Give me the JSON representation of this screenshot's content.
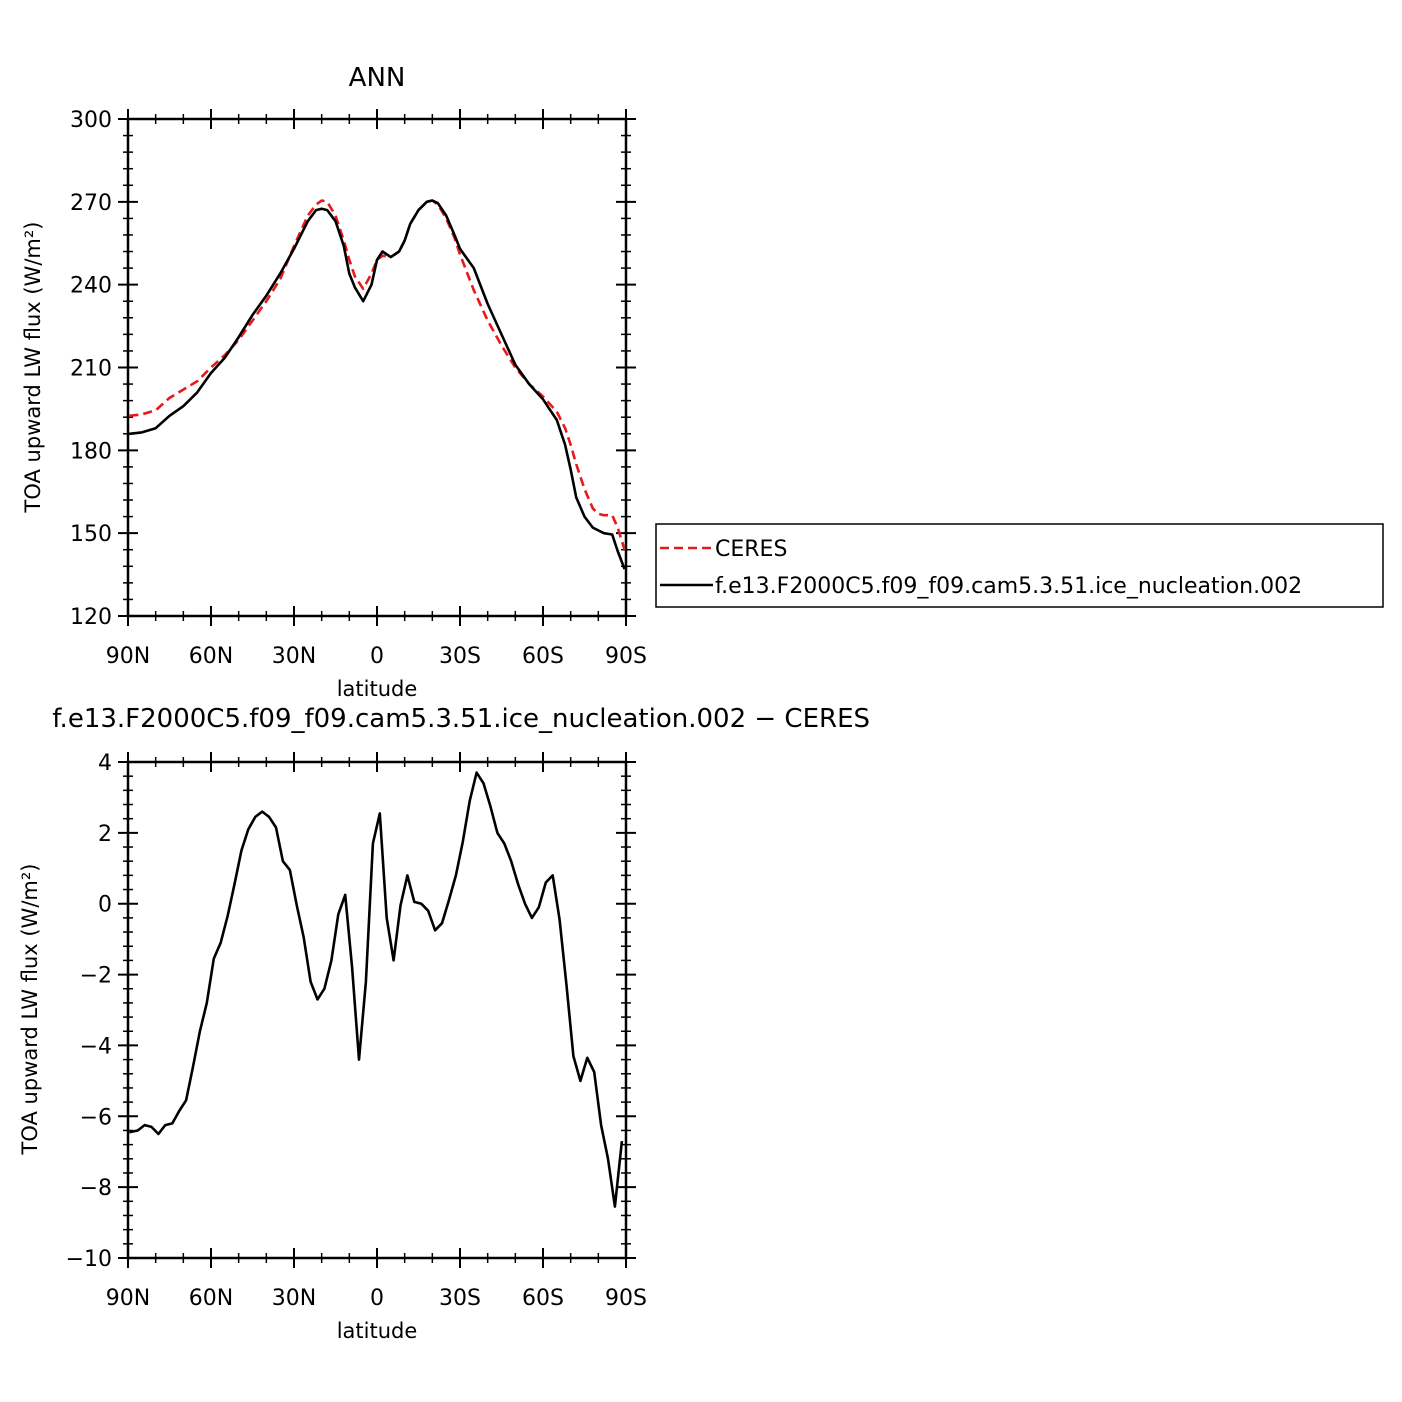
{
  "chart_data": [
    {
      "type": "line",
      "title": "ANN",
      "xlabel": "latitude",
      "ylabel": "TOA upward LW flux (W/m²)",
      "xlim": [
        -90,
        90
      ],
      "ylim": [
        120,
        300
      ],
      "yticks": [
        120,
        150,
        180,
        210,
        240,
        270,
        300
      ],
      "xticks": [
        -90,
        -60,
        -30,
        0,
        30,
        60,
        90
      ],
      "xtick_labels": [
        "90N",
        "60N",
        "30N",
        "0",
        "30S",
        "60S",
        "90S"
      ],
      "legend": {
        "placement": "right",
        "entries": [
          "CERES",
          "f.e13.F2000C5.f09_f09.cam5.3.51.ice_nucleation.002"
        ]
      },
      "series": [
        {
          "name": "CERES",
          "color": "#e8191a",
          "dash": "dashed",
          "x": [
            -89.5,
            -85,
            -80,
            -75,
            -70,
            -65,
            -60,
            -55,
            -50,
            -45,
            -40,
            -35,
            -30,
            -25,
            -22,
            -20,
            -18,
            -15,
            -12,
            -10,
            -8,
            -5,
            -2,
            0,
            2,
            5,
            8,
            10,
            12,
            15,
            18,
            20,
            22,
            25,
            28,
            30,
            35,
            40,
            45,
            50,
            55,
            60,
            65,
            68,
            70,
            72,
            75,
            78,
            80,
            82,
            85,
            87,
            89.5
          ],
          "y": [
            192.5,
            193,
            194.5,
            199,
            202,
            205,
            210,
            214.5,
            220,
            227,
            234,
            242,
            254,
            265,
            269,
            270.5,
            270,
            265,
            256,
            249,
            243,
            238.5,
            244,
            249,
            250.5,
            250,
            252,
            256,
            262,
            267,
            270,
            270.5,
            269,
            264,
            257,
            251,
            238,
            227,
            218,
            210,
            204,
            199.5,
            194,
            188,
            182,
            175,
            166,
            159,
            157,
            156.5,
            156.5,
            152,
            144
          ]
        },
        {
          "name": "f.e13.F2000C5.f09_f09.cam5.3.51.ice_nucleation.002",
          "color": "#000000",
          "dash": "solid",
          "x": [
            -89.5,
            -85,
            -80,
            -75,
            -70,
            -65,
            -60,
            -55,
            -50,
            -45,
            -40,
            -35,
            -30,
            -25,
            -22,
            -20,
            -18,
            -15,
            -12,
            -10,
            -8,
            -5,
            -2,
            0,
            2,
            5,
            8,
            10,
            12,
            15,
            18,
            20,
            22,
            25,
            28,
            30,
            35,
            40,
            45,
            50,
            55,
            60,
            65,
            68,
            70,
            72,
            75,
            78,
            80,
            82,
            85,
            87,
            89.5
          ],
          "y": [
            186,
            186.5,
            188,
            192.5,
            196,
            201,
            208,
            213.5,
            221,
            229,
            236,
            244,
            253,
            263,
            267,
            267.5,
            267,
            263,
            254,
            244,
            239,
            234,
            240,
            249,
            252,
            250,
            252,
            256,
            262,
            267,
            270,
            270.5,
            269.5,
            265,
            258,
            253,
            246,
            233,
            222,
            211,
            204,
            198.5,
            191,
            182,
            173,
            163,
            156,
            152,
            151,
            150,
            149.5,
            143.5,
            137
          ]
        }
      ]
    },
    {
      "type": "line",
      "title": "f.e13.F2000C5.f09_f09.cam5.3.51.ice_nucleation.002 − CERES",
      "xlabel": "latitude",
      "ylabel": "TOA upward LW flux (W/m²)",
      "xlim": [
        -90,
        90
      ],
      "ylim": [
        -10,
        4
      ],
      "yticks": [
        -10,
        -8,
        -6,
        -4,
        -2,
        0,
        2,
        4
      ],
      "ytick_labels": [
        "−10",
        "−8",
        "−6",
        "−4",
        "−2",
        "0",
        "2",
        "4"
      ],
      "xticks": [
        -90,
        -60,
        -30,
        0,
        30,
        60,
        90
      ],
      "xtick_labels": [
        "90N",
        "60N",
        "30N",
        "0",
        "30S",
        "60S",
        "90S"
      ],
      "series": [
        {
          "color": "#000000",
          "dash": "solid",
          "x": [
            -89.5,
            -86.5,
            -84,
            -81.5,
            -79,
            -76.5,
            -74,
            -71.5,
            -69,
            -66.5,
            -64,
            -61.5,
            -59,
            -56.5,
            -54,
            -51.5,
            -49,
            -46.5,
            -44,
            -41.5,
            -39,
            -36.5,
            -34,
            -31.5,
            -29,
            -26.5,
            -24,
            -21.5,
            -19,
            -16.5,
            -14,
            -11.5,
            -9,
            -6.5,
            -4,
            -1.5,
            1,
            3.5,
            6,
            8.5,
            11,
            13.5,
            16,
            18.5,
            21,
            23.5,
            26,
            28.5,
            31,
            33.5,
            36,
            38.5,
            41,
            43.5,
            46,
            48.5,
            51,
            53.5,
            56,
            58.5,
            61,
            63.5,
            66,
            68.5,
            71,
            73.5,
            76,
            78.5,
            81,
            83.5,
            86,
            88.5
          ],
          "y": [
            -6.45,
            -6.4,
            -6.25,
            -6.3,
            -6.5,
            -6.25,
            -6.2,
            -5.85,
            -5.55,
            -4.6,
            -3.6,
            -2.8,
            -1.55,
            -1.1,
            -0.35,
            0.55,
            1.5,
            2.1,
            2.45,
            2.6,
            2.45,
            2.15,
            1.2,
            0.95,
            -0.05,
            -0.95,
            -2.2,
            -2.7,
            -2.4,
            -1.6,
            -0.3,
            0.25,
            -1.8,
            -4.4,
            -2.2,
            1.7,
            2.55,
            -0.4,
            -1.6,
            -0.05,
            0.8,
            0.05,
            0.0,
            -0.2,
            -0.75,
            -0.55,
            0.1,
            0.8,
            1.75,
            2.9,
            3.7,
            3.4,
            2.75,
            2.0,
            1.7,
            1.2,
            0.55,
            0.0,
            -0.4,
            -0.1,
            0.6,
            0.8,
            -0.45,
            -2.3,
            -4.3,
            -5.0,
            -4.35,
            -4.75,
            -6.25,
            -7.2,
            -8.55,
            -6.7
          ]
        }
      ]
    }
  ]
}
